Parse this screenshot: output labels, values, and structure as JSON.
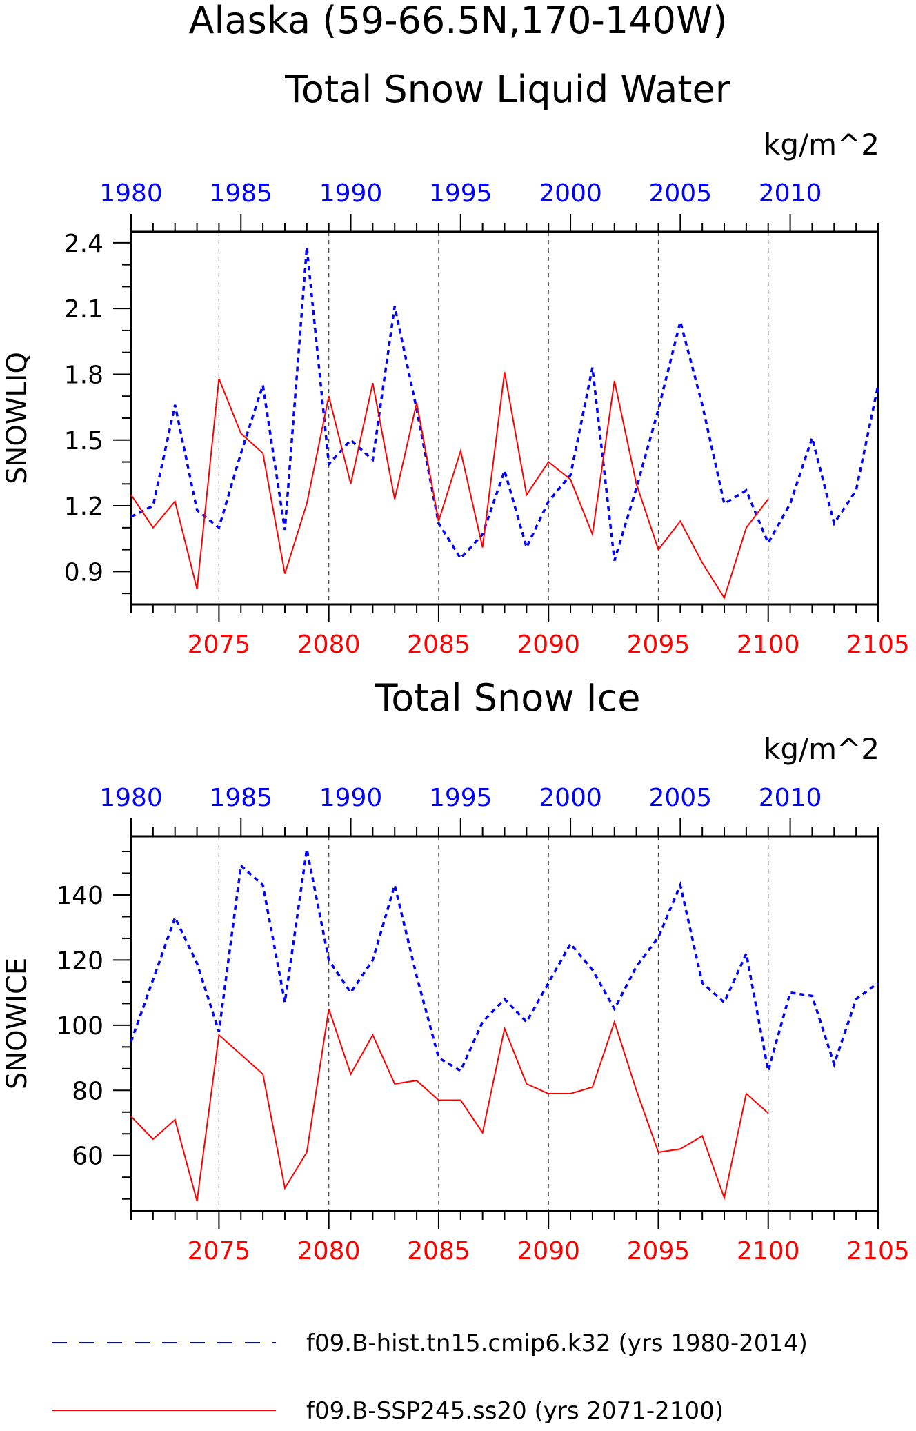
{
  "title": "Alaska (59-66.5N,170-140W)",
  "colors": {
    "hist": "#0000ff",
    "ssp": "#ff0000",
    "axis": "#000000",
    "grid": "#444444"
  },
  "legend": {
    "hist_label": "f09.B-hist.tn15.cmip6.k32 (yrs 1980-2014)",
    "ssp_label": "f09.B-SSP245.ss20 (yrs 2071-2100)"
  },
  "chart_data": [
    {
      "type": "line",
      "title": "Total Snow Liquid Water",
      "units": "kg/m^2",
      "ylabel": "SNOWLIQ",
      "ylim": [
        0.75,
        2.45
      ],
      "yticks": [
        "0.9",
        "1.2",
        "1.5",
        "1.8",
        "2.1",
        "2.4"
      ],
      "xlim_top": [
        1980,
        2014
      ],
      "xlim_bottom": [
        2071,
        2105
      ],
      "xticks_top": [
        "1980",
        "1985",
        "1990",
        "1995",
        "2000",
        "2005",
        "2010"
      ],
      "xticks_bottom": [
        "2075",
        "2080",
        "2085",
        "2090",
        "2095",
        "2100",
        "2105"
      ],
      "grid": "dashed vertical lines at bottom-axis major ticks",
      "series": [
        {
          "name": "f09.B-hist.tn15.cmip6.k32 (yrs 1980-2014)",
          "axis": "top",
          "style": "dashed",
          "x": [
            1980,
            1981,
            1982,
            1983,
            1984,
            1985,
            1986,
            1987,
            1988,
            1989,
            1990,
            1991,
            1992,
            1993,
            1994,
            1995,
            1996,
            1997,
            1998,
            1999,
            2000,
            2001,
            2002,
            2003,
            2004,
            2005,
            2006,
            2007,
            2008,
            2009,
            2010,
            2011,
            2012,
            2013,
            2014
          ],
          "y": [
            1.15,
            1.2,
            1.66,
            1.18,
            1.1,
            1.44,
            1.75,
            1.09,
            2.38,
            1.39,
            1.5,
            1.41,
            2.11,
            1.64,
            1.12,
            0.96,
            1.07,
            1.36,
            1.01,
            1.22,
            1.34,
            1.83,
            0.95,
            1.28,
            1.64,
            2.04,
            1.66,
            1.21,
            1.27,
            1.03,
            1.21,
            1.51,
            1.12,
            1.27,
            1.75
          ]
        },
        {
          "name": "f09.B-SSP245.ss20 (yrs 2071-2100)",
          "axis": "bottom",
          "style": "solid",
          "x": [
            2071,
            2072,
            2073,
            2074,
            2075,
            2076,
            2077,
            2078,
            2079,
            2080,
            2081,
            2082,
            2083,
            2084,
            2085,
            2086,
            2087,
            2088,
            2089,
            2090,
            2091,
            2092,
            2093,
            2094,
            2095,
            2096,
            2097,
            2098,
            2099,
            2100
          ],
          "y": [
            1.25,
            1.1,
            1.22,
            0.82,
            1.78,
            1.53,
            1.44,
            0.89,
            1.21,
            1.7,
            1.3,
            1.76,
            1.23,
            1.67,
            1.13,
            1.45,
            1.01,
            1.81,
            1.25,
            1.4,
            1.32,
            1.07,
            1.77,
            1.3,
            1.0,
            1.13,
            0.94,
            0.78,
            1.1,
            1.23
          ]
        }
      ]
    },
    {
      "type": "line",
      "title": "Total Snow Ice",
      "units": "kg/m^2",
      "ylabel": "SNOWICE",
      "ylim": [
        43,
        158
      ],
      "yticks": [
        "60",
        "80",
        "100",
        "120",
        "140"
      ],
      "xlim_top": [
        1980,
        2014
      ],
      "xlim_bottom": [
        2071,
        2105
      ],
      "xticks_top": [
        "1980",
        "1985",
        "1990",
        "1995",
        "2000",
        "2005",
        "2010"
      ],
      "xticks_bottom": [
        "2075",
        "2080",
        "2085",
        "2090",
        "2095",
        "2100",
        "2105"
      ],
      "grid": "dashed vertical lines at bottom-axis major ticks",
      "series": [
        {
          "name": "f09.B-hist.tn15.cmip6.k32 (yrs 1980-2014)",
          "axis": "top",
          "style": "dashed",
          "x": [
            1980,
            1981,
            1982,
            1983,
            1984,
            1985,
            1986,
            1987,
            1988,
            1989,
            1990,
            1991,
            1992,
            1993,
            1994,
            1995,
            1996,
            1997,
            1998,
            1999,
            2000,
            2001,
            2002,
            2003,
            2004,
            2005,
            2006,
            2007,
            2008,
            2009,
            2010,
            2011,
            2012,
            2013,
            2014
          ],
          "y": [
            95,
            114,
            133,
            119,
            98,
            149,
            143,
            107,
            154,
            120,
            110,
            120,
            143,
            115,
            90,
            86,
            101,
            108,
            101,
            113,
            125,
            117,
            105,
            118,
            127,
            143,
            113,
            107,
            122,
            86,
            110,
            109,
            88,
            108,
            113
          ]
        },
        {
          "name": "f09.B-SSP245.ss20 (yrs 2071-2100)",
          "axis": "bottom",
          "style": "solid",
          "x": [
            2071,
            2072,
            2073,
            2074,
            2075,
            2076,
            2077,
            2078,
            2079,
            2080,
            2081,
            2082,
            2083,
            2084,
            2085,
            2086,
            2087,
            2088,
            2089,
            2090,
            2091,
            2092,
            2093,
            2094,
            2095,
            2096,
            2097,
            2098,
            2099,
            2100
          ],
          "y": [
            72,
            65,
            71,
            46,
            97,
            91,
            85,
            50,
            61,
            105,
            85,
            97,
            82,
            83,
            77,
            77,
            67,
            99,
            82,
            79,
            79,
            81,
            101,
            80,
            61,
            62,
            66,
            47,
            79,
            73
          ]
        }
      ]
    }
  ]
}
